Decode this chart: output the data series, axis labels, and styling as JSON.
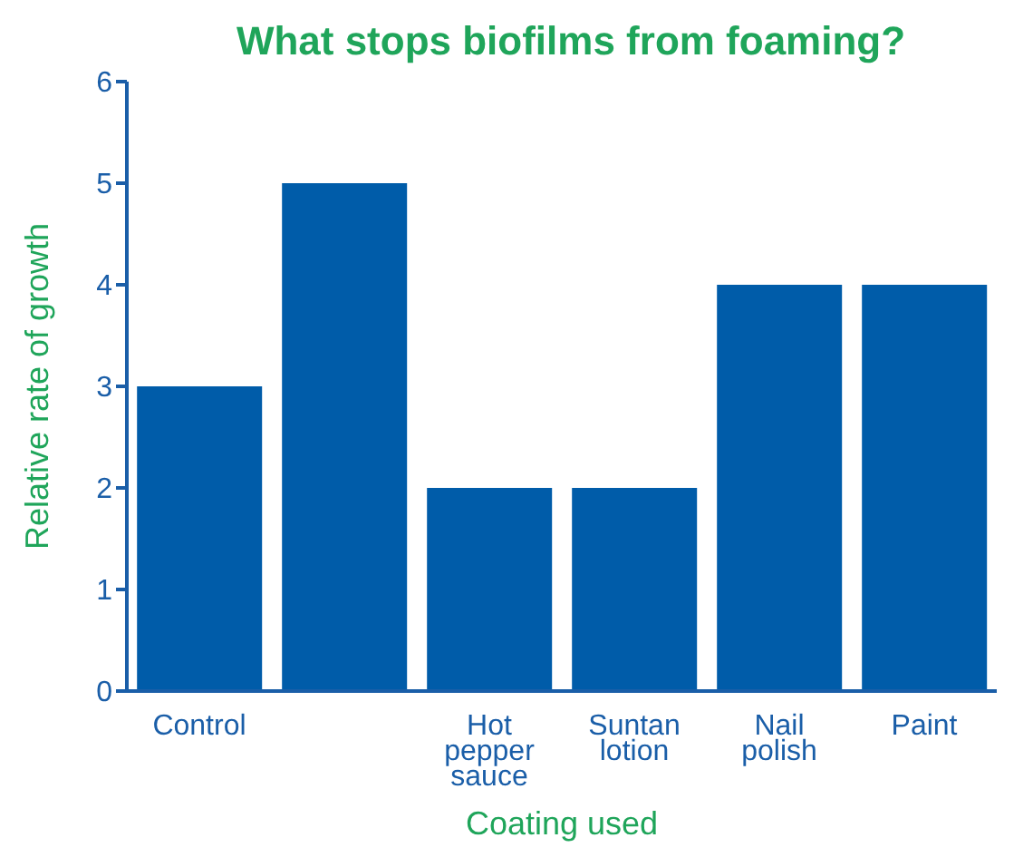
{
  "chart_data": {
    "type": "bar",
    "title": "What stops biofilms from foaming?",
    "xlabel": "Coating used",
    "ylabel": "Relative rate of growth",
    "categories": [
      "Control",
      null,
      "Hot pepper sauce",
      "Suntan lotion",
      "Nail polish",
      "Paint"
    ],
    "values": [
      3,
      5,
      2,
      2,
      4,
      4
    ],
    "color": "#005ca9",
    "ylim": [
      0,
      6
    ],
    "yticks": [
      0,
      1,
      2,
      3,
      4,
      5,
      6
    ],
    "legend": false
  }
}
